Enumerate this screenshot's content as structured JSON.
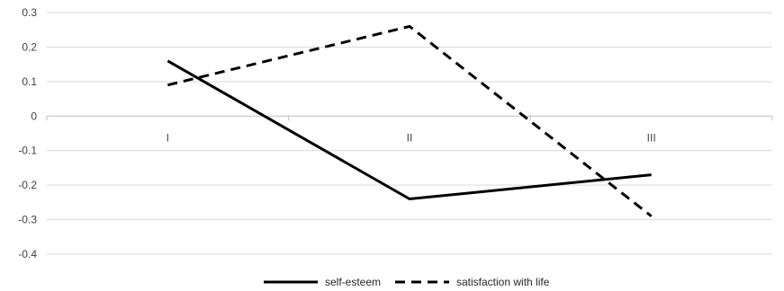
{
  "chart_data": {
    "type": "line",
    "categories": [
      "I",
      "II",
      "III"
    ],
    "ylim": [
      -0.4,
      0.3
    ],
    "yticks": [
      "0.3",
      "0.2",
      "0.1",
      "0",
      "-0.1",
      "-0.2",
      "-0.3",
      "-0.4"
    ],
    "grid": true,
    "legend_position": "bottom",
    "series": [
      {
        "name": "self-esteem",
        "values": [
          0.16,
          -0.24,
          -0.17
        ],
        "color": "#000000",
        "dash": "solid"
      },
      {
        "name": "satisfaction with life",
        "values": [
          0.09,
          0.26,
          -0.29
        ],
        "color": "#000000",
        "dash": "dashed"
      }
    ]
  }
}
